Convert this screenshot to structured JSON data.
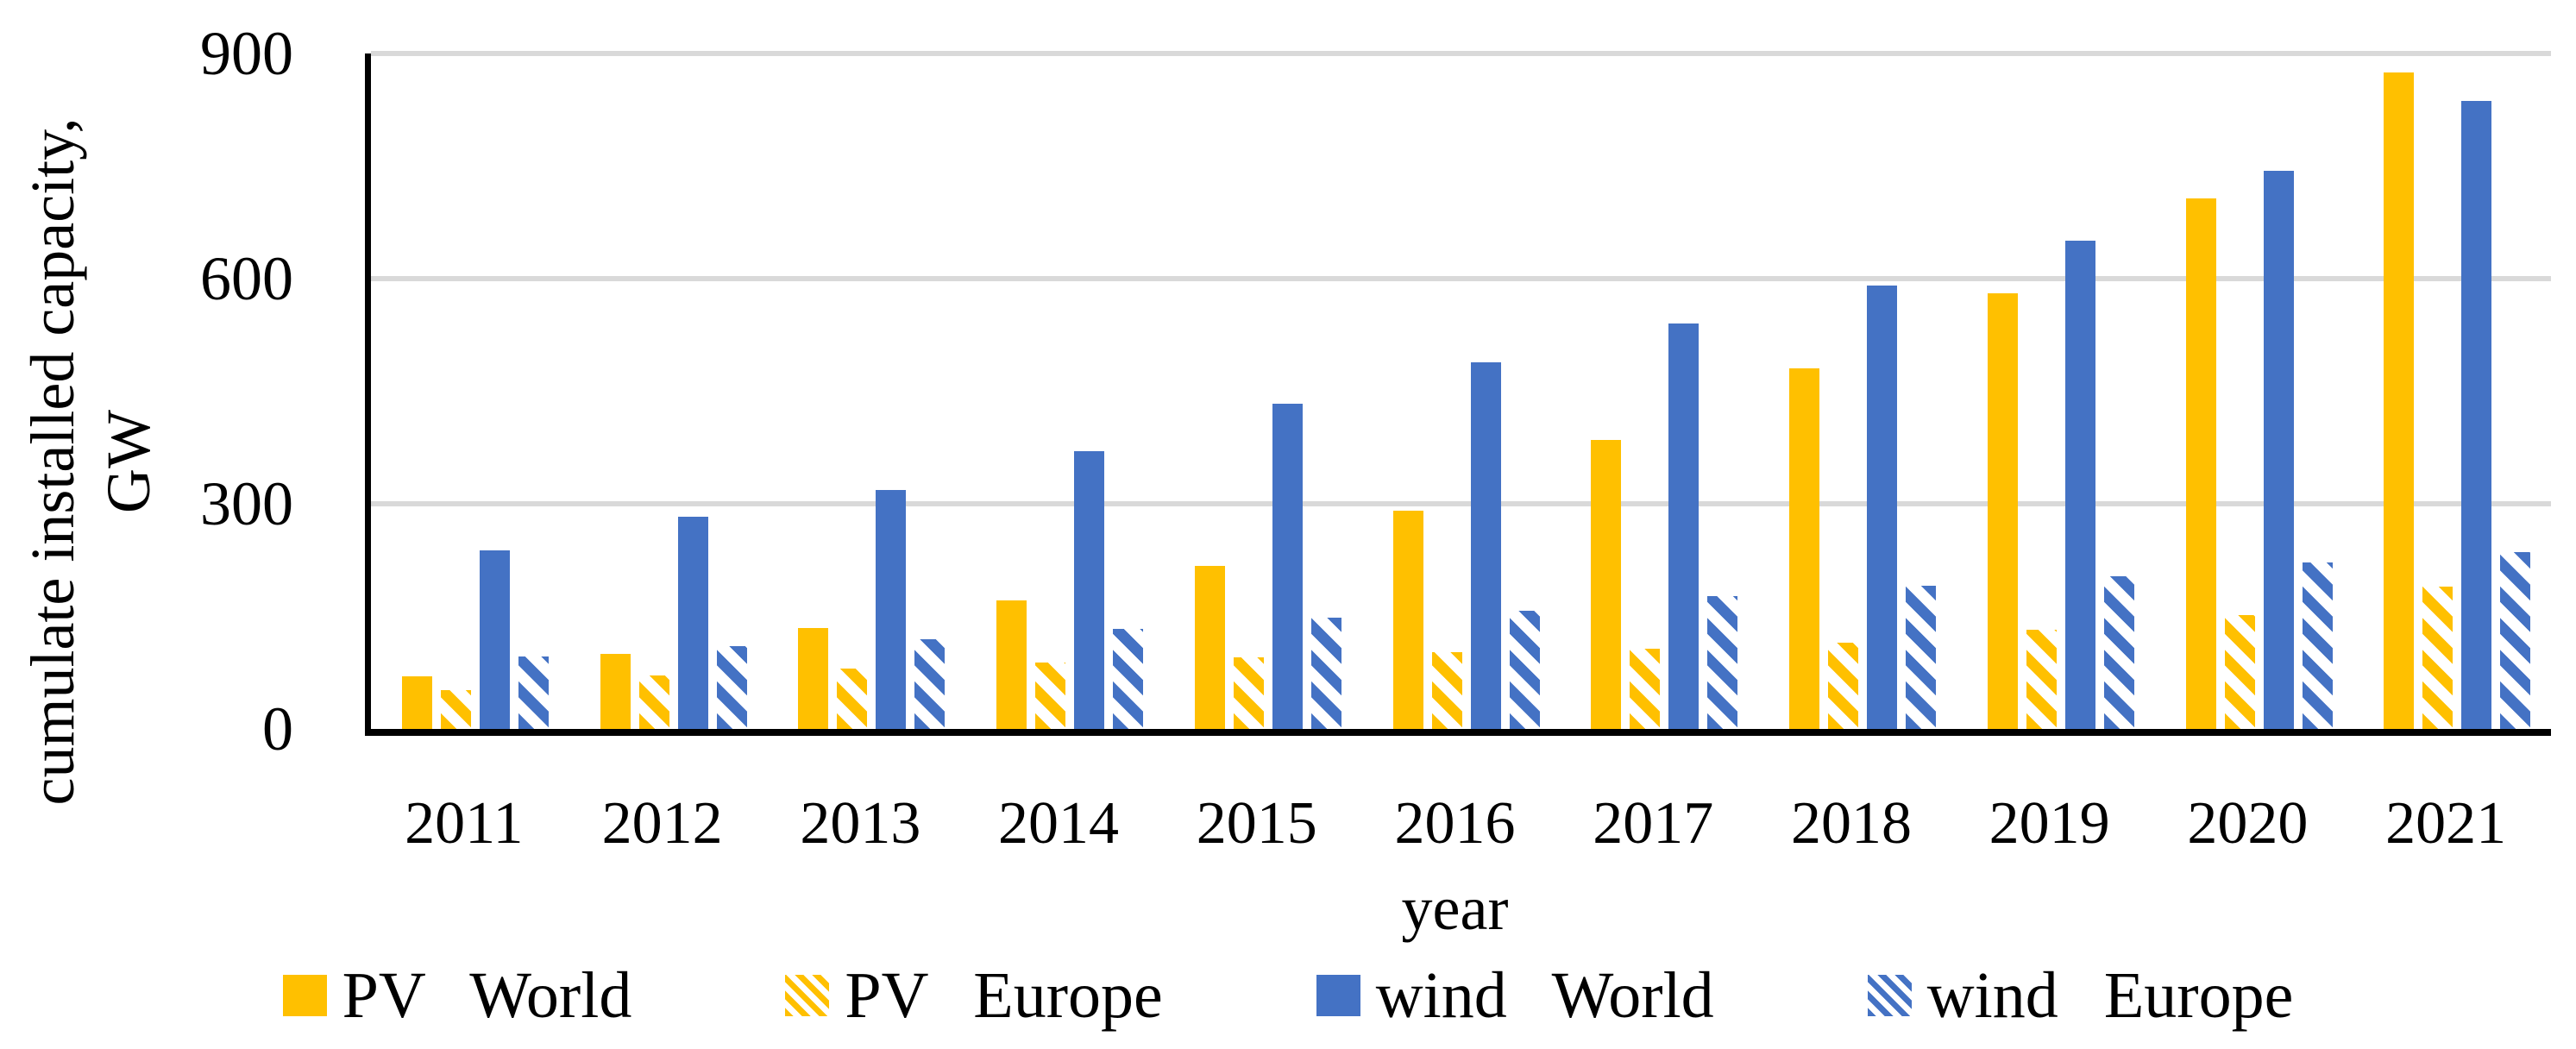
{
  "chart_data": {
    "type": "bar",
    "title": "",
    "xlabel": "year",
    "ylabel": "cumulate installed capacity, GW",
    "ylabel_lines": [
      "cumulate installed capacity,",
      "GW"
    ],
    "categories": [
      "2011",
      "2012",
      "2013",
      "2014",
      "2015",
      "2016",
      "2017",
      "2018",
      "2019",
      "2020",
      "2021"
    ],
    "series": [
      {
        "name": "PV World",
        "color": "#FFC000",
        "pattern": "solid",
        "values": [
          70,
          100,
          135,
          171,
          217,
          291,
          385,
          480,
          580,
          707,
          875
        ]
      },
      {
        "name": "PV Europe",
        "color": "#FFC000",
        "pattern": "hatched",
        "values": [
          52,
          71,
          80,
          88,
          95,
          102,
          107,
          115,
          132,
          152,
          190
        ]
      },
      {
        "name": "wind World",
        "color": "#4472C4",
        "pattern": "solid",
        "values": [
          238,
          283,
          318,
          370,
          433,
          488,
          540,
          591,
          650,
          744,
          837
        ]
      },
      {
        "name": "wind Europe",
        "color": "#4472C4",
        "pattern": "hatched",
        "values": [
          97,
          110,
          120,
          133,
          148,
          158,
          177,
          191,
          203,
          222,
          236
        ]
      }
    ],
    "ylim": [
      0,
      900
    ],
    "yticks": [
      0,
      300,
      600,
      900
    ],
    "grid": true,
    "legend_position": "bottom",
    "colors": {
      "pv": "#FFC000",
      "wind": "#4472C4",
      "gridline": "#D9D9D9",
      "axis": "#000000",
      "background": "#FFFFFF",
      "text": "#000000"
    }
  }
}
